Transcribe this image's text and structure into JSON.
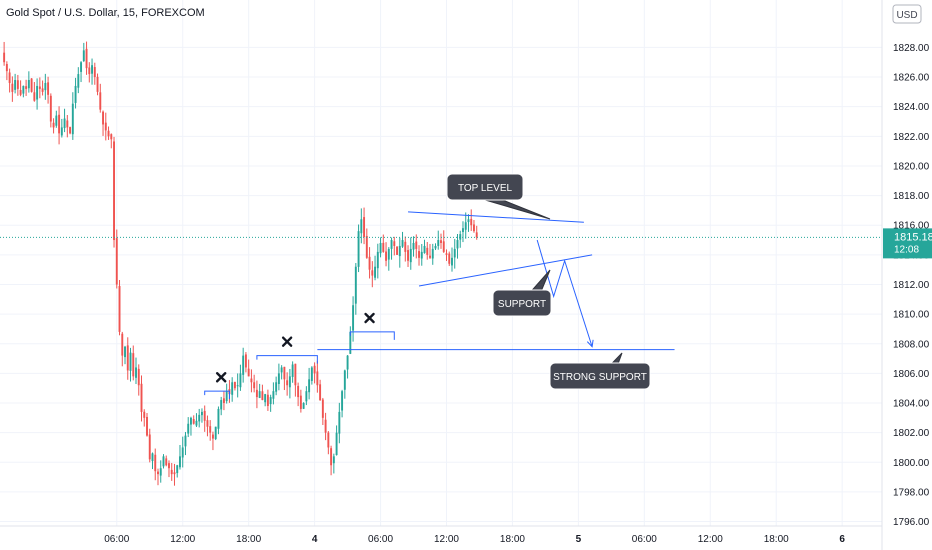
{
  "header": {
    "symbol_title": "Gold Spot / U.S. Dollar, 15, FOREXCOM",
    "currency_badge": "USD"
  },
  "price_tag": {
    "price": "1815.18",
    "countdown": "12:08"
  },
  "colors": {
    "up": "#26a69a",
    "down": "#ef5350",
    "drawing": "#2962ff",
    "grid": "#f0f3fa",
    "callout_bg": "#434651",
    "price_tag": "#26a69a"
  },
  "chart_data": {
    "type": "candlestick",
    "title": "Gold Spot / U.S. Dollar, 15, FOREXCOM",
    "xlabel": "",
    "ylabel": "",
    "ylim": [
      1795.7,
      1831.2
    ],
    "y_ticks": [
      1796,
      1798,
      1800,
      1802,
      1804,
      1806,
      1808,
      1810,
      1812,
      1814,
      1816,
      1818,
      1820,
      1822,
      1824,
      1826,
      1828
    ],
    "x_ticks": [
      {
        "label": "06:00",
        "bar": 42,
        "bold": false
      },
      {
        "label": "12:00",
        "bar": 66,
        "bold": false
      },
      {
        "label": "18:00",
        "bar": 90,
        "bold": false
      },
      {
        "label": "4",
        "bar": 114,
        "bold": true
      },
      {
        "label": "06:00",
        "bar": 138,
        "bold": false
      },
      {
        "label": "12:00",
        "bar": 162,
        "bold": false
      },
      {
        "label": "18:00",
        "bar": 186,
        "bold": false
      },
      {
        "label": "5",
        "bar": 210,
        "bold": true
      },
      {
        "label": "06:00",
        "bar": 234,
        "bold": false
      },
      {
        "label": "12:00",
        "bar": 258,
        "bold": false
      },
      {
        "label": "18:00",
        "bar": 282,
        "bold": false
      },
      {
        "label": "6",
        "bar": 306,
        "bold": true
      }
    ],
    "last_price": 1815.18,
    "bars_total": 321,
    "closes": [
      1827.6,
      1827.0,
      1826.4,
      1825.6,
      1825.0,
      1825.8,
      1825.2,
      1824.8,
      1825.4,
      1825.2,
      1825.8,
      1825.0,
      1824.4,
      1825.4,
      1825.2,
      1825.0,
      1825.6,
      1824.8,
      1823.0,
      1822.6,
      1823.4,
      1822.2,
      1822.6,
      1823.2,
      1822.6,
      1822.2,
      1824.2,
      1825.4,
      1826.2,
      1827.0,
      1827.8,
      1826.6,
      1826.2,
      1826.8,
      1826.0,
      1825.0,
      1823.8,
      1822.8,
      1822.4,
      1822.0,
      1821.8,
      1815.0,
      1812.0,
      1808.8,
      1807.2,
      1807.8,
      1806.2,
      1807.4,
      1805.8,
      1806.4,
      1805.2,
      1803.4,
      1803.0,
      1801.8,
      1800.2,
      1800.6,
      1799.4,
      1799.2,
      1799.6,
      1800.4,
      1799.8,
      1799.6,
      1799.2,
      1799.2,
      1799.8,
      1800.4,
      1801.0,
      1801.8,
      1802.6,
      1803.0,
      1802.6,
      1802.8,
      1803.2,
      1803.4,
      1802.8,
      1802.4,
      1802.0,
      1801.6,
      1802.4,
      1803.6,
      1804.2,
      1804.0,
      1804.8,
      1804.6,
      1805.4,
      1805.0,
      1805.2,
      1806.0,
      1807.2,
      1806.4,
      1805.8,
      1805.4,
      1805.0,
      1804.4,
      1804.8,
      1804.2,
      1804.6,
      1803.8,
      1804.4,
      1804.8,
      1805.4,
      1806.0,
      1806.4,
      1805.6,
      1805.2,
      1805.8,
      1806.6,
      1805.2,
      1804.4,
      1803.6,
      1804.0,
      1804.8,
      1805.6,
      1806.4,
      1806.0,
      1805.2,
      1804.2,
      1803.0,
      1802.0,
      1801.0,
      1799.8,
      1800.4,
      1802.0,
      1803.4,
      1804.8,
      1806.2,
      1807.2,
      1808.8,
      1810.6,
      1813.2,
      1815.6,
      1816.4,
      1815.2,
      1813.8,
      1813.0,
      1812.6,
      1813.2,
      1814.2,
      1814.8,
      1814.2,
      1813.6,
      1814.4,
      1815.0,
      1814.6,
      1814.0,
      1814.6,
      1815.0,
      1814.2,
      1813.6,
      1814.4,
      1814.8,
      1814.4,
      1813.8,
      1814.2,
      1814.6,
      1814.0,
      1813.8,
      1814.4,
      1814.6,
      1815.0,
      1814.8,
      1814.2,
      1814.0,
      1813.4,
      1813.8,
      1814.4,
      1815.0,
      1815.4,
      1815.8,
      1816.2,
      1816.4,
      1816.0,
      1815.6,
      1815.18
    ],
    "annotations": {
      "top_level": {
        "label": "TOP LEVEL",
        "line": {
          "bar1": 148,
          "p1": 1816.9,
          "bar2": 212,
          "p2": 1816.2
        }
      },
      "support": {
        "label": "SUPPORT",
        "line": {
          "bar1": 152,
          "p1": 1811.9,
          "bar2": 215,
          "p2": 1814.0
        }
      },
      "strong_support": {
        "label": "STRONG SUPPORT",
        "price": 1807.6,
        "bar1": 115,
        "bar2": 245
      },
      "projection_path": [
        {
          "bar": 195,
          "price": 1815.0
        },
        {
          "bar": 201,
          "price": 1811.2
        },
        {
          "bar": 205,
          "price": 1813.6
        },
        {
          "bar": 215,
          "price": 1807.8
        }
      ],
      "steps": [
        {
          "bar1": 74,
          "bar2": 83,
          "price": 1804.8
        },
        {
          "bar1": 93,
          "bar2": 115,
          "price": 1807.2
        },
        {
          "bar1": 127,
          "bar2": 143,
          "price": 1808.8
        }
      ],
      "break_markers": [
        {
          "bar": 80,
          "price": 1805.2
        },
        {
          "bar": 104,
          "price": 1807.6
        },
        {
          "bar": 134,
          "price": 1809.2
        }
      ]
    }
  }
}
